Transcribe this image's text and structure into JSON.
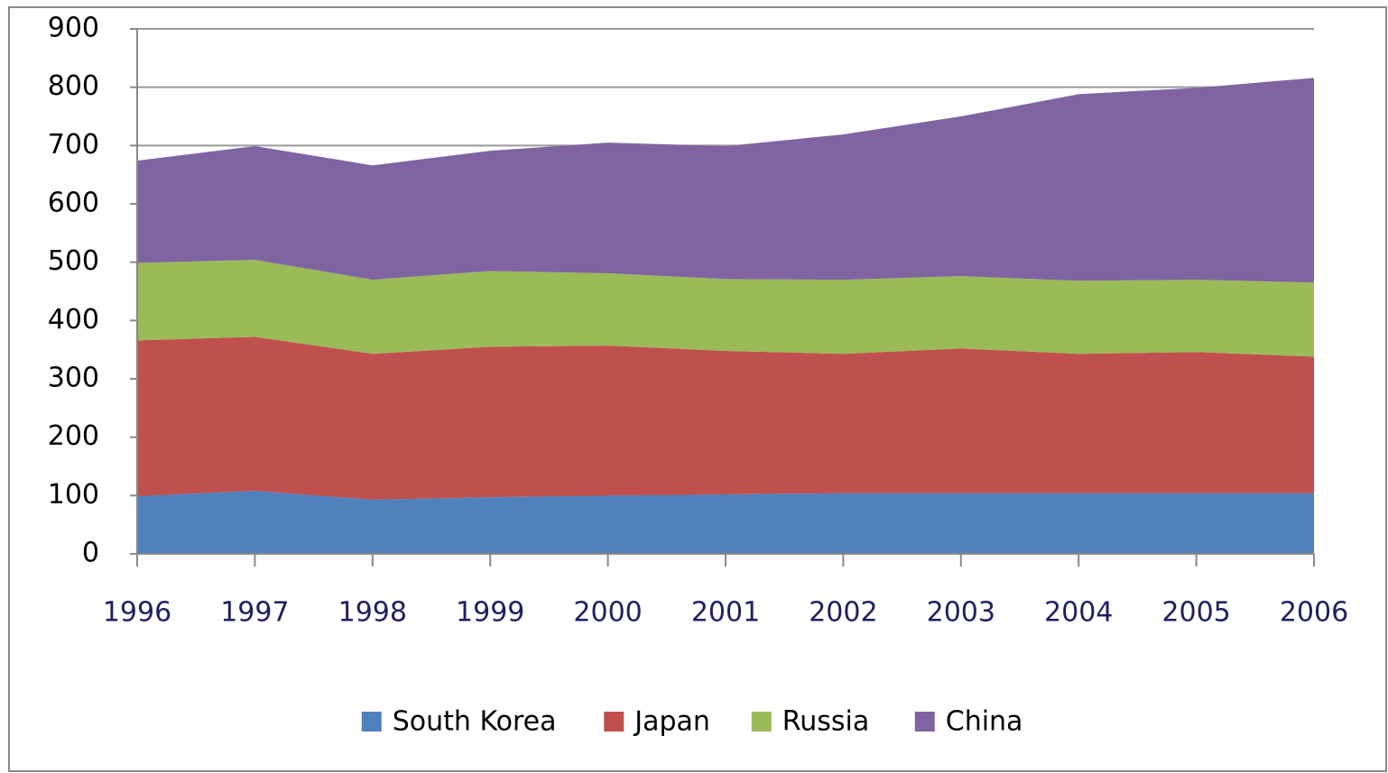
{
  "chart_data": {
    "type": "stacked_area",
    "categories": [
      "1996",
      "1997",
      "1998",
      "1999",
      "2000",
      "2001",
      "2002",
      "2003",
      "2004",
      "2005",
      "2006"
    ],
    "series": [
      {
        "name": "South Korea",
        "color": "#4f81bd",
        "values": [
          99,
          108,
          93,
          97,
          100,
          102,
          104,
          104,
          104,
          104,
          104
        ]
      },
      {
        "name": "Japan",
        "color": "#c0504d",
        "values": [
          267,
          264,
          250,
          258,
          257,
          246,
          239,
          248,
          239,
          242,
          234
        ]
      },
      {
        "name": "Russia",
        "color": "#9bbb59",
        "values": [
          133,
          132,
          127,
          130,
          124,
          123,
          127,
          124,
          125,
          124,
          127
        ]
      },
      {
        "name": "China",
        "color": "#8064a2",
        "values": [
          175,
          195,
          196,
          206,
          224,
          228,
          249,
          274,
          320,
          329,
          351
        ]
      }
    ],
    "ylim": [
      0,
      900
    ],
    "yticks": [
      0,
      100,
      200,
      300,
      400,
      500,
      600,
      700,
      800,
      900
    ],
    "grid": true,
    "legend": "bottom"
  }
}
